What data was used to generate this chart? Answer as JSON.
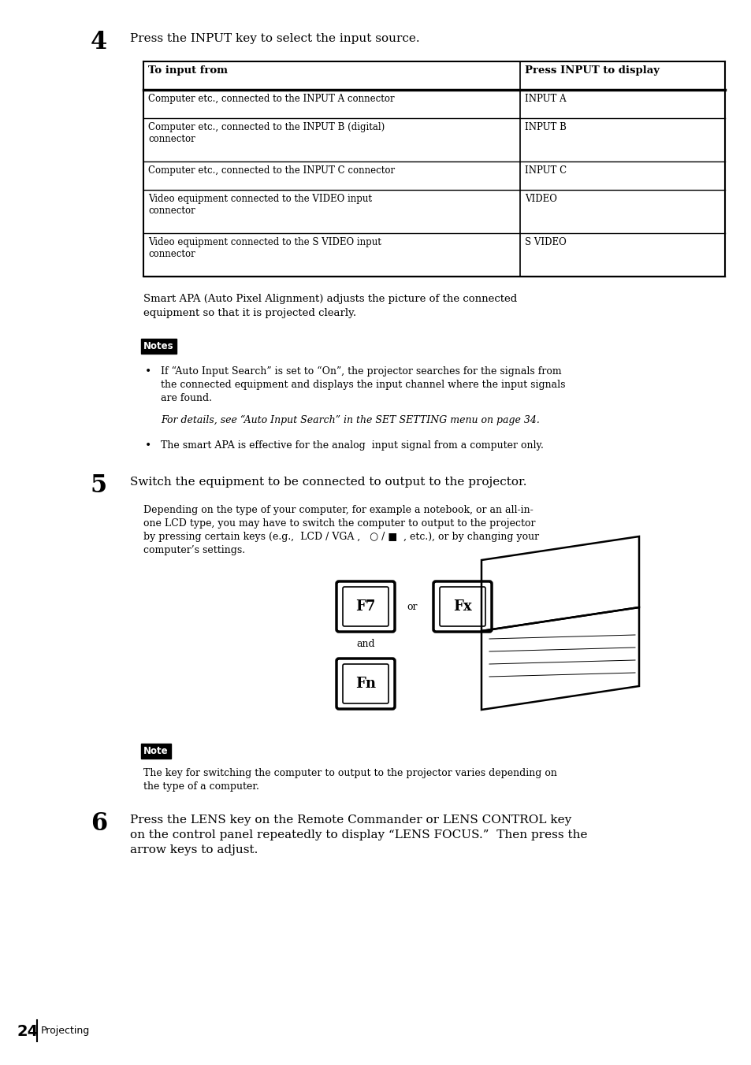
{
  "page_bg": "#ffffff",
  "text_color": "#000000",
  "page_num": "24",
  "page_label": "Projecting",
  "step4_num": "4",
  "step4_text": "Press the INPUT key to select the input source.",
  "table_header_col1": "To input from",
  "table_header_col2": "Press INPUT to display",
  "table_rows": [
    [
      "Computer etc., connected to the INPUT A connector",
      "INPUT A"
    ],
    [
      "Computer etc., connected to the INPUT B (digital)\nconnector",
      "INPUT B"
    ],
    [
      "Computer etc., connected to the INPUT C connector",
      "INPUT C"
    ],
    [
      "Video equipment connected to the VIDEO input\nconnector",
      "VIDEO"
    ],
    [
      "Video equipment connected to the S VIDEO input\nconnector",
      "S VIDEO"
    ]
  ],
  "smart_apa_text": "Smart APA (Auto Pixel Alignment) adjusts the picture of the connected\nequipment so that it is projected clearly.",
  "notes_label": "Notes",
  "note_label": "Note",
  "bullet1_line1": "If “Auto Input Search” is set to “On”, the projector searches for the signals from",
  "bullet1_line2": "the connected equipment and displays the input channel where the input signals",
  "bullet1_line3": "are found.",
  "italic_note": "For details, see “Auto Input Search” in the SET SETTING menu on page 34.",
  "bullet2": "The smart APA is effective for the analog  input signal from a computer only.",
  "step5_num": "5",
  "step5_text": "Switch the equipment to be connected to output to the projector.",
  "step5_body_line1": "Depending on the type of your computer, for example a notebook, or an all-in-",
  "step5_body_line2": "one LCD type, you may have to switch the computer to output to the projector",
  "step5_body_line3": "by pressing certain keys (e.g.,  LCD / VGA ,   ○ / ■  , etc.), or by changing your",
  "step5_body_line4": "computer’s settings.",
  "note2_text_line1": "The key for switching the computer to output to the projector varies depending on",
  "note2_text_line2": "the type of a computer.",
  "step6_num": "6",
  "step6_text_line1": "Press the LENS key on the Remote Commander or LENS CONTROL key",
  "step6_text_line2": "on the control panel repeatedly to display “LENS FOCUS.”  Then press the",
  "step6_text_line3": "arrow keys to adjust."
}
